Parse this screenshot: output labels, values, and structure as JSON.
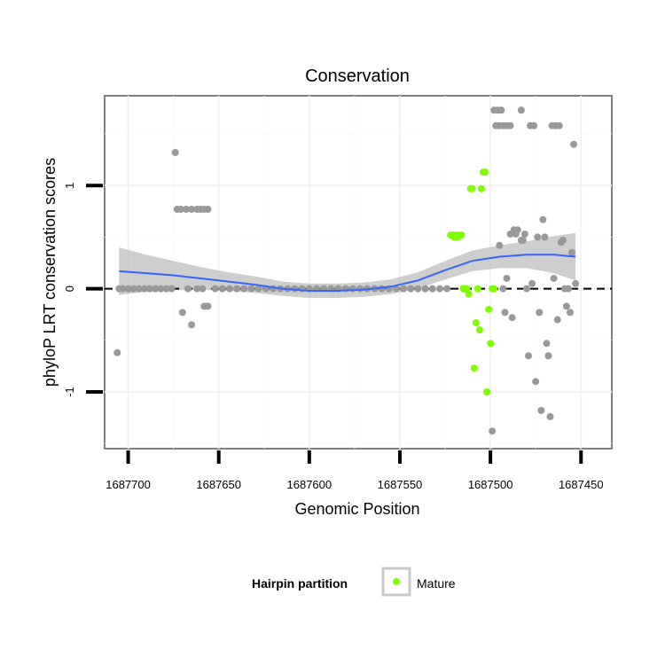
{
  "chart_data": {
    "type": "scatter",
    "title": "Conservation",
    "xlabel": "Genomic Position",
    "ylabel": "phyloP LRT conservation scores",
    "x_reversed": true,
    "xlim": [
      1687713,
      1687433
    ],
    "ylim": [
      -1.55,
      1.87
    ],
    "x_ticks": [
      1687700,
      1687650,
      1687600,
      1687550,
      1687500,
      1687450
    ],
    "x_tick_labels": [
      "1687700",
      "1687650",
      "1687600",
      "1687550",
      "1687500",
      "1687450"
    ],
    "y_ticks": [
      -1,
      0,
      1
    ],
    "y_tick_labels": [
      "-1",
      "0",
      "1"
    ],
    "reference_line": {
      "y": 0,
      "style": "dashed"
    },
    "legend": {
      "title": "Hairpin partition",
      "entries": [
        {
          "label": "Mature",
          "color": "#7fff00"
        }
      ],
      "position": "bottom"
    },
    "colors": {
      "other": "#999999",
      "mature": "#7fff00",
      "smooth": "#3366ff",
      "band": "#bdbdbd"
    },
    "series": [
      {
        "name": "other",
        "points": [
          [
            1687706,
            -0.62
          ],
          [
            1687705,
            0
          ],
          [
            1687703,
            0
          ],
          [
            1687700,
            0
          ],
          [
            1687697,
            0
          ],
          [
            1687694,
            0
          ],
          [
            1687691,
            0
          ],
          [
            1687688,
            0
          ],
          [
            1687685,
            0
          ],
          [
            1687682,
            0
          ],
          [
            1687679,
            0
          ],
          [
            1687676,
            0
          ],
          [
            1687674,
            1.32
          ],
          [
            1687673,
            0.77
          ],
          [
            1687671,
            0.77
          ],
          [
            1687668,
            0.77
          ],
          [
            1687665,
            0.77
          ],
          [
            1687662,
            0.77
          ],
          [
            1687660,
            0.77
          ],
          [
            1687658,
            0.77
          ],
          [
            1687656,
            0.77
          ],
          [
            1687670,
            -0.23
          ],
          [
            1687667,
            0
          ],
          [
            1687665,
            -0.35
          ],
          [
            1687662,
            0
          ],
          [
            1687659,
            0
          ],
          [
            1687658,
            -0.17
          ],
          [
            1687656,
            -0.17
          ],
          [
            1687652,
            0
          ],
          [
            1687648,
            0
          ],
          [
            1687644,
            0
          ],
          [
            1687640,
            0
          ],
          [
            1687636,
            0
          ],
          [
            1687632,
            0
          ],
          [
            1687628,
            0
          ],
          [
            1687624,
            0
          ],
          [
            1687620,
            0
          ],
          [
            1687616,
            0
          ],
          [
            1687612,
            0
          ],
          [
            1687608,
            0
          ],
          [
            1687604,
            0
          ],
          [
            1687600,
            0
          ],
          [
            1687596,
            0
          ],
          [
            1687592,
            0
          ],
          [
            1687588,
            0
          ],
          [
            1687584,
            0
          ],
          [
            1687580,
            0
          ],
          [
            1687576,
            0
          ],
          [
            1687572,
            0
          ],
          [
            1687568,
            0
          ],
          [
            1687564,
            0
          ],
          [
            1687560,
            0
          ],
          [
            1687556,
            0
          ],
          [
            1687552,
            0
          ],
          [
            1687548,
            0
          ],
          [
            1687544,
            0
          ],
          [
            1687540,
            0
          ],
          [
            1687536,
            0
          ],
          [
            1687532,
            0
          ],
          [
            1687528,
            0
          ],
          [
            1687524,
            0
          ],
          [
            1687499,
            -1.38
          ],
          [
            1687498,
            1.73
          ],
          [
            1687496,
            1.73
          ],
          [
            1687494,
            1.73
          ],
          [
            1687497,
            1.58
          ],
          [
            1687495,
            1.58
          ],
          [
            1687493,
            1.58
          ],
          [
            1687491,
            1.58
          ],
          [
            1687489,
            1.58
          ],
          [
            1687495,
            0.42
          ],
          [
            1687493,
            0
          ],
          [
            1687491,
            0.1
          ],
          [
            1687492,
            -0.23
          ],
          [
            1687489,
            0.53
          ],
          [
            1687487,
            0.57
          ],
          [
            1687485,
            0.57
          ],
          [
            1687483,
            0.47
          ],
          [
            1687481,
            0.53
          ],
          [
            1687488,
            -0.28
          ],
          [
            1687486,
            0.53
          ],
          [
            1687483,
            1.73
          ],
          [
            1687482,
            0.47
          ],
          [
            1687480,
            0
          ],
          [
            1687478,
            1.58
          ],
          [
            1687476,
            1.58
          ],
          [
            1687479,
            -0.65
          ],
          [
            1687477,
            0.05
          ],
          [
            1687475,
            -0.9
          ],
          [
            1687474,
            0.5
          ],
          [
            1687473,
            -0.23
          ],
          [
            1687472,
            -1.18
          ],
          [
            1687471,
            0.67
          ],
          [
            1687470,
            0.5
          ],
          [
            1687469,
            -0.53
          ],
          [
            1687468,
            -0.65
          ],
          [
            1687467,
            -1.24
          ],
          [
            1687466,
            1.58
          ],
          [
            1687464,
            1.58
          ],
          [
            1687462,
            1.58
          ],
          [
            1687465,
            0.1
          ],
          [
            1687463,
            -0.3
          ],
          [
            1687461,
            0.45
          ],
          [
            1687460,
            0.47
          ],
          [
            1687459,
            0
          ],
          [
            1687458,
            -0.17
          ],
          [
            1687457,
            0
          ],
          [
            1687456,
            -0.23
          ],
          [
            1687455,
            0.35
          ],
          [
            1687454,
            1.4
          ],
          [
            1687453,
            0.05
          ]
        ]
      },
      {
        "name": "Mature",
        "points": [
          [
            1687522,
            0.52
          ],
          [
            1687521,
            0.52
          ],
          [
            1687520,
            0.5
          ],
          [
            1687519,
            0.52
          ],
          [
            1687518,
            0.5
          ],
          [
            1687517,
            0.52
          ],
          [
            1687516,
            0.52
          ],
          [
            1687515,
            0
          ],
          [
            1687514,
            0
          ],
          [
            1687513,
            0
          ],
          [
            1687512,
            -0.05
          ],
          [
            1687511,
            0.97
          ],
          [
            1687510,
            0.97
          ],
          [
            1687509,
            -0.77
          ],
          [
            1687508,
            -0.33
          ],
          [
            1687507,
            0
          ],
          [
            1687506,
            -0.4
          ],
          [
            1687505,
            0.97
          ],
          [
            1687504,
            1.13
          ],
          [
            1687503,
            1.13
          ],
          [
            1687502,
            -1
          ],
          [
            1687501,
            -0.2
          ],
          [
            1687500,
            -0.53
          ],
          [
            1687499,
            0
          ],
          [
            1687498,
            0
          ]
        ]
      }
    ],
    "smooth": {
      "x": [
        1687705,
        1687690,
        1687675,
        1687660,
        1687645,
        1687630,
        1687615,
        1687600,
        1687585,
        1687570,
        1687555,
        1687540,
        1687525,
        1687510,
        1687495,
        1687480,
        1687465,
        1687453
      ],
      "y": [
        0.17,
        0.15,
        0.13,
        0.1,
        0.07,
        0.04,
        0.0,
        -0.02,
        -0.02,
        -0.01,
        0.02,
        0.08,
        0.18,
        0.27,
        0.31,
        0.33,
        0.33,
        0.31
      ],
      "se": [
        0.23,
        0.18,
        0.14,
        0.11,
        0.09,
        0.08,
        0.07,
        0.07,
        0.07,
        0.07,
        0.07,
        0.08,
        0.09,
        0.1,
        0.11,
        0.13,
        0.18,
        0.23
      ]
    }
  }
}
